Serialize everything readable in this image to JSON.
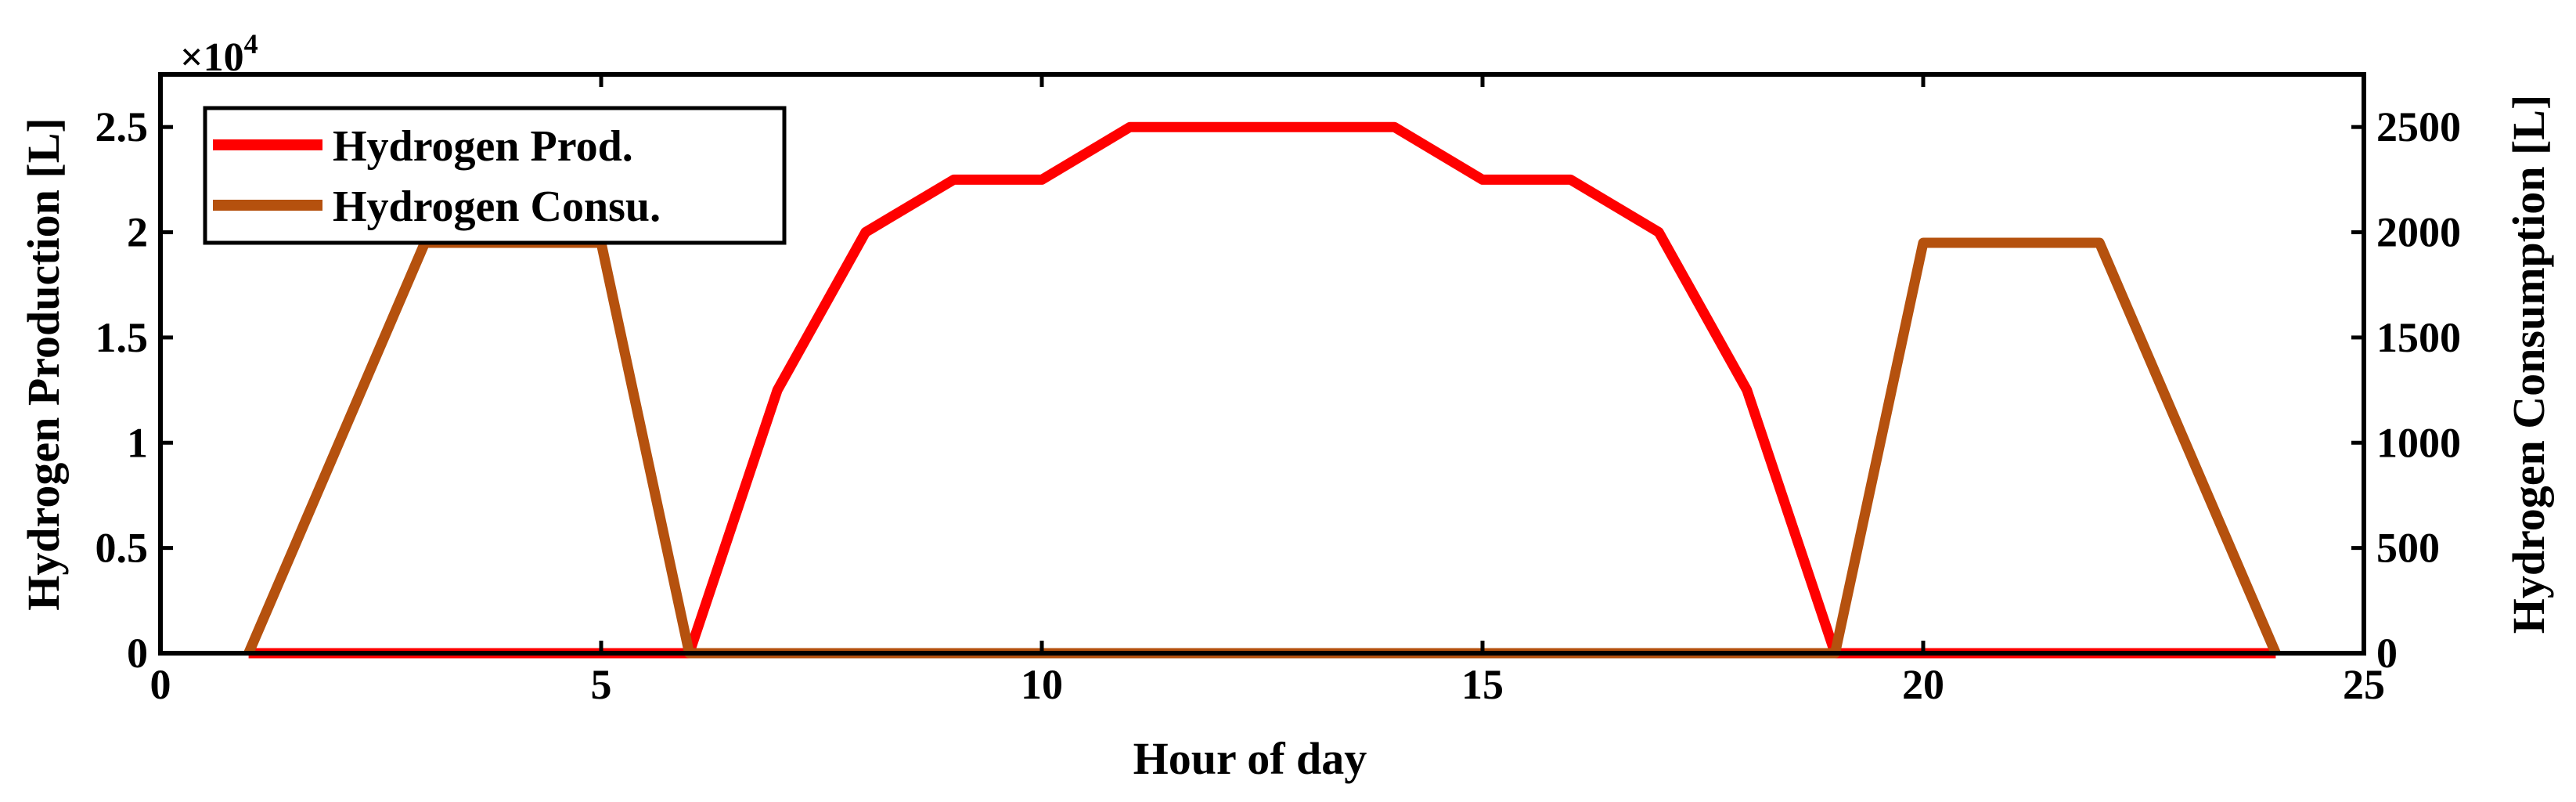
{
  "chart_data": {
    "type": "line",
    "xlabel": "Hour of day",
    "ylabel_left": "Hydrogen Production [L]",
    "ylabel_right": "Hydrogen Consumption [L]",
    "left_axis_multiplier": "×10",
    "left_axis_multiplier_exp": "4",
    "xlim": [
      0,
      25
    ],
    "ylim_left": [
      0,
      27500
    ],
    "ylim_right": [
      0,
      2750
    ],
    "x_ticks": [
      "0",
      "5",
      "10",
      "15",
      "20",
      "25"
    ],
    "y_left_ticks": [
      "0",
      "0.5",
      "1",
      "1.5",
      "2",
      "2.5"
    ],
    "y_right_ticks": [
      "0",
      "500",
      "1000",
      "1500",
      "2000",
      "2500"
    ],
    "grid": false,
    "legend_position": "top-left",
    "series": [
      {
        "name": "Hydrogen Prod.",
        "axis": "left",
        "color": "#ff0000",
        "x": [
          1,
          2,
          3,
          4,
          5,
          6,
          7,
          8,
          9,
          10,
          11,
          12,
          13,
          14,
          15,
          16,
          17,
          18,
          19,
          20,
          21,
          22,
          23,
          24
        ],
        "values": [
          0,
          0,
          0,
          0,
          0,
          0,
          12500,
          20000,
          22500,
          22500,
          25000,
          25000,
          25000,
          25000,
          22500,
          22500,
          20000,
          12500,
          0,
          0,
          0,
          0,
          0,
          0
        ]
      },
      {
        "name": "Hydrogen Consu.",
        "axis": "right",
        "color": "#b5510e",
        "x": [
          1,
          3,
          4,
          5,
          6,
          7,
          8,
          9,
          10,
          11,
          12,
          13,
          14,
          15,
          16,
          17,
          18,
          19,
          20,
          21,
          22,
          24
        ],
        "values": [
          0,
          1950,
          1950,
          1950,
          0,
          0,
          0,
          0,
          0,
          0,
          0,
          0,
          0,
          0,
          0,
          0,
          0,
          0,
          1950,
          1950,
          1950,
          0
        ]
      }
    ]
  }
}
